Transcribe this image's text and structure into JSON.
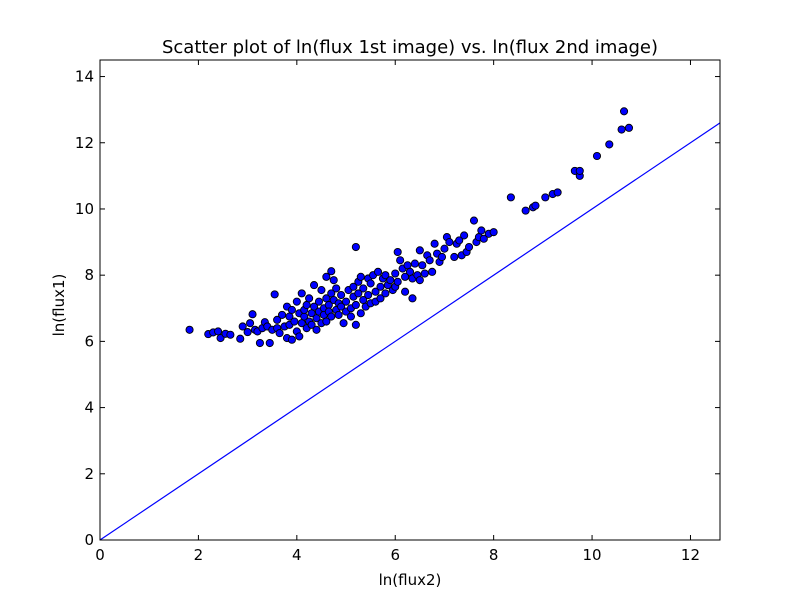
{
  "chart_data": {
    "type": "scatter",
    "title": "Scatter plot of ln(flux 1st image) vs. ln(flux 2nd image)",
    "xlabel": "ln(flux2)",
    "ylabel": "ln(flux1)",
    "xlim": [
      0,
      12.6
    ],
    "ylim": [
      0,
      14.5
    ],
    "x_ticks": [
      0,
      2,
      4,
      6,
      8,
      10,
      12
    ],
    "y_ticks": [
      0,
      2,
      4,
      6,
      8,
      10,
      12,
      14
    ],
    "x_tick_labels": [
      "0",
      "2",
      "4",
      "6",
      "8",
      "10",
      "12"
    ],
    "y_tick_labels": [
      "0",
      "2",
      "4",
      "6",
      "8",
      "10",
      "12",
      "14"
    ],
    "grid": false,
    "marker_color": "#0000ff",
    "line_color": "#0000ff",
    "reference_line": {
      "x": [
        0,
        12.6
      ],
      "y": [
        0,
        12.6
      ]
    },
    "series": [
      {
        "points": [
          [
            1.82,
            6.35
          ],
          [
            2.2,
            6.22
          ],
          [
            2.3,
            6.27
          ],
          [
            2.4,
            6.3
          ],
          [
            2.45,
            6.1
          ],
          [
            2.55,
            6.23
          ],
          [
            2.65,
            6.2
          ],
          [
            2.85,
            6.08
          ],
          [
            2.9,
            6.45
          ],
          [
            3.0,
            6.28
          ],
          [
            3.05,
            6.55
          ],
          [
            3.1,
            6.82
          ],
          [
            3.15,
            6.35
          ],
          [
            3.2,
            6.3
          ],
          [
            3.25,
            5.95
          ],
          [
            3.3,
            6.4
          ],
          [
            3.35,
            6.58
          ],
          [
            3.4,
            6.45
          ],
          [
            3.45,
            5.95
          ],
          [
            3.5,
            6.35
          ],
          [
            3.55,
            7.42
          ],
          [
            3.6,
            6.65
          ],
          [
            3.6,
            6.4
          ],
          [
            3.65,
            6.25
          ],
          [
            3.7,
            6.8
          ],
          [
            3.75,
            6.45
          ],
          [
            3.8,
            6.1
          ],
          [
            3.8,
            7.05
          ],
          [
            3.85,
            6.75
          ],
          [
            3.85,
            6.5
          ],
          [
            3.9,
            6.05
          ],
          [
            3.9,
            6.95
          ],
          [
            3.95,
            6.6
          ],
          [
            4.0,
            6.3
          ],
          [
            4.0,
            7.2
          ],
          [
            4.05,
            6.85
          ],
          [
            4.05,
            6.15
          ],
          [
            4.1,
            6.55
          ],
          [
            4.1,
            7.45
          ],
          [
            4.15,
            6.75
          ],
          [
            4.15,
            6.95
          ],
          [
            4.2,
            6.4
          ],
          [
            4.2,
            7.1
          ],
          [
            4.25,
            6.6
          ],
          [
            4.25,
            7.3
          ],
          [
            4.3,
            6.85
          ],
          [
            4.3,
            6.5
          ],
          [
            4.35,
            7.05
          ],
          [
            4.35,
            7.7
          ],
          [
            4.4,
            6.7
          ],
          [
            4.4,
            6.35
          ],
          [
            4.45,
            7.2
          ],
          [
            4.45,
            6.9
          ],
          [
            4.5,
            7.55
          ],
          [
            4.5,
            6.55
          ],
          [
            4.55,
            7.0
          ],
          [
            4.55,
            6.8
          ],
          [
            4.6,
            7.95
          ],
          [
            4.6,
            7.3
          ],
          [
            4.6,
            6.6
          ],
          [
            4.65,
            7.1
          ],
          [
            4.65,
            6.9
          ],
          [
            4.7,
            8.12
          ],
          [
            4.7,
            7.45
          ],
          [
            4.7,
            6.75
          ],
          [
            4.75,
            7.25
          ],
          [
            4.75,
            7.85
          ],
          [
            4.8,
            6.95
          ],
          [
            4.8,
            7.6
          ],
          [
            4.85,
            7.15
          ],
          [
            4.85,
            6.8
          ],
          [
            4.9,
            7.4
          ],
          [
            4.9,
            7.05
          ],
          [
            4.95,
            6.55
          ],
          [
            5.0,
            7.2
          ],
          [
            5.0,
            6.9
          ],
          [
            5.05,
            7.55
          ],
          [
            5.1,
            7.0
          ],
          [
            5.1,
            6.75
          ],
          [
            5.15,
            7.35
          ],
          [
            5.15,
            7.65
          ],
          [
            5.2,
            8.85
          ],
          [
            5.2,
            7.1
          ],
          [
            5.2,
            6.5
          ],
          [
            5.25,
            7.8
          ],
          [
            5.25,
            7.45
          ],
          [
            5.3,
            6.85
          ],
          [
            5.3,
            7.95
          ],
          [
            5.35,
            7.25
          ],
          [
            5.35,
            7.6
          ],
          [
            5.4,
            7.05
          ],
          [
            5.45,
            7.9
          ],
          [
            5.45,
            7.4
          ],
          [
            5.5,
            7.75
          ],
          [
            5.5,
            7.15
          ],
          [
            5.55,
            8.0
          ],
          [
            5.6,
            7.5
          ],
          [
            5.6,
            7.2
          ],
          [
            5.65,
            8.1
          ],
          [
            5.7,
            7.65
          ],
          [
            5.7,
            7.3
          ],
          [
            5.75,
            7.9
          ],
          [
            5.8,
            8.0
          ],
          [
            5.8,
            7.45
          ],
          [
            5.85,
            7.7
          ],
          [
            5.9,
            7.85
          ],
          [
            5.95,
            7.55
          ],
          [
            6.0,
            8.05
          ],
          [
            6.0,
            7.65
          ],
          [
            6.05,
            8.7
          ],
          [
            6.05,
            7.8
          ],
          [
            6.1,
            8.45
          ],
          [
            6.15,
            8.2
          ],
          [
            6.2,
            7.95
          ],
          [
            6.2,
            7.5
          ],
          [
            6.25,
            8.3
          ],
          [
            6.3,
            8.1
          ],
          [
            6.35,
            7.9
          ],
          [
            6.35,
            7.3
          ],
          [
            6.4,
            8.35
          ],
          [
            6.45,
            8.0
          ],
          [
            6.5,
            8.75
          ],
          [
            6.5,
            7.85
          ],
          [
            6.55,
            8.3
          ],
          [
            6.6,
            8.05
          ],
          [
            6.65,
            8.6
          ],
          [
            6.7,
            8.45
          ],
          [
            6.75,
            8.1
          ],
          [
            6.8,
            8.95
          ],
          [
            6.85,
            8.65
          ],
          [
            6.9,
            8.4
          ],
          [
            6.95,
            8.55
          ],
          [
            7.0,
            8.8
          ],
          [
            7.05,
            9.15
          ],
          [
            7.1,
            9.0
          ],
          [
            7.2,
            8.55
          ],
          [
            7.25,
            8.95
          ],
          [
            7.3,
            9.05
          ],
          [
            7.35,
            8.6
          ],
          [
            7.4,
            9.2
          ],
          [
            7.45,
            8.7
          ],
          [
            7.5,
            8.85
          ],
          [
            7.6,
            9.65
          ],
          [
            7.65,
            9.0
          ],
          [
            7.7,
            9.15
          ],
          [
            7.75,
            9.35
          ],
          [
            7.8,
            9.1
          ],
          [
            7.9,
            9.25
          ],
          [
            8.0,
            9.3
          ],
          [
            8.35,
            10.35
          ],
          [
            8.65,
            9.95
          ],
          [
            8.8,
            10.05
          ],
          [
            8.85,
            10.1
          ],
          [
            9.05,
            10.35
          ],
          [
            9.2,
            10.45
          ],
          [
            9.3,
            10.5
          ],
          [
            9.65,
            11.15
          ],
          [
            9.75,
            11.0
          ],
          [
            9.75,
            11.15
          ],
          [
            10.1,
            11.6
          ],
          [
            10.35,
            11.95
          ],
          [
            10.6,
            12.4
          ],
          [
            10.65,
            12.95
          ],
          [
            10.75,
            12.45
          ]
        ]
      }
    ]
  }
}
